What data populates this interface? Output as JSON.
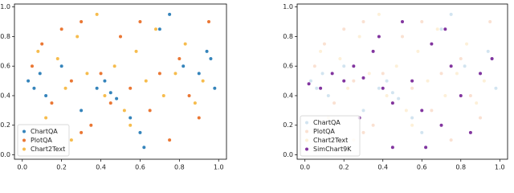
{
  "chart_data": [
    {
      "type": "scatter",
      "legend": "lower left",
      "xlim": [
        -0.04,
        1.04
      ],
      "ylim": [
        -0.03,
        1.02
      ],
      "xticks": [
        {
          "value": 0,
          "label": "0.0"
        },
        {
          "value": 0.2,
          "label": "0.2"
        },
        {
          "value": 0.4,
          "label": "0.4"
        },
        {
          "value": 0.6,
          "label": "0.6"
        },
        {
          "value": 0.8,
          "label": "0.8"
        },
        {
          "value": 1,
          "label": "1.0"
        }
      ],
      "yticks": [
        {
          "value": 0,
          "label": "0.0"
        },
        {
          "value": 0.2,
          "label": "0.2"
        },
        {
          "value": 0.4,
          "label": "0.4"
        },
        {
          "value": 0.6,
          "label": "0.6"
        },
        {
          "value": 0.8,
          "label": "0.8"
        },
        {
          "value": 1,
          "label": "1.0"
        }
      ],
      "series": [
        {
          "name": "ChartQA",
          "color": "#1f77b4",
          "alpha": 0.9,
          "x": [
            0.03,
            0.06,
            0.09,
            0.12,
            0.2,
            0.3,
            0.38,
            0.42,
            0.45,
            0.48,
            0.55,
            0.6,
            0.62,
            0.7,
            0.75,
            0.82,
            0.9,
            0.94,
            0.96,
            0.98
          ],
          "y": [
            0.5,
            0.45,
            0.55,
            0.4,
            0.6,
            0.3,
            0.45,
            0.5,
            0.42,
            0.38,
            0.25,
            0.15,
            0.05,
            0.85,
            0.95,
            0.6,
            0.55,
            0.7,
            0.65,
            0.45
          ]
        },
        {
          "name": "PlotQA",
          "color": "#e8681e",
          "alpha": 0.9,
          "x": [
            0.05,
            0.1,
            0.15,
            0.2,
            0.25,
            0.3,
            0.35,
            0.4,
            0.45,
            0.5,
            0.55,
            0.6,
            0.65,
            0.7,
            0.75,
            0.8,
            0.85,
            0.9,
            0.95,
            0.3
          ],
          "y": [
            0.6,
            0.75,
            0.35,
            0.85,
            0.5,
            0.9,
            0.2,
            0.55,
            0.35,
            0.8,
            0.45,
            0.9,
            0.3,
            0.55,
            0.1,
            0.65,
            0.4,
            0.25,
            0.9,
            0.15
          ]
        },
        {
          "name": "Chart2Text",
          "color": "#f5b53a",
          "alpha": 0.9,
          "x": [
            0.08,
            0.12,
            0.18,
            0.22,
            0.28,
            0.33,
            0.38,
            0.42,
            0.47,
            0.52,
            0.58,
            0.63,
            0.68,
            0.72,
            0.78,
            0.83,
            0.88,
            0.92,
            0.25,
            0.55
          ],
          "y": [
            0.7,
            0.25,
            0.65,
            0.45,
            0.8,
            0.55,
            0.95,
            0.4,
            0.6,
            0.3,
            0.7,
            0.5,
            0.85,
            0.4,
            0.55,
            0.75,
            0.35,
            0.5,
            0.1,
            0.2
          ]
        }
      ]
    },
    {
      "type": "scatter",
      "legend": "lower left",
      "xlim": [
        -0.04,
        1.04
      ],
      "ylim": [
        -0.03,
        1.02
      ],
      "xticks": [
        {
          "value": 0,
          "label": "0.0"
        },
        {
          "value": 0.2,
          "label": "0.2"
        },
        {
          "value": 0.4,
          "label": "0.4"
        },
        {
          "value": 0.6,
          "label": "0.6"
        },
        {
          "value": 0.8,
          "label": "0.8"
        },
        {
          "value": 1,
          "label": "1.0"
        }
      ],
      "yticks": [
        {
          "value": 0,
          "label": "0.0"
        },
        {
          "value": 0.2,
          "label": "0.2"
        },
        {
          "value": 0.4,
          "label": "0.4"
        },
        {
          "value": 0.6,
          "label": "0.6"
        },
        {
          "value": 0.8,
          "label": "0.8"
        },
        {
          "value": 1,
          "label": "1.0"
        }
      ],
      "series": [
        {
          "name": "ChartQA",
          "color": "#1f77b4",
          "alpha": 0.2,
          "x": [
            0.03,
            0.06,
            0.09,
            0.12,
            0.2,
            0.3,
            0.38,
            0.42,
            0.45,
            0.48,
            0.55,
            0.6,
            0.62,
            0.7,
            0.75,
            0.82,
            0.9,
            0.94,
            0.96,
            0.98
          ],
          "y": [
            0.5,
            0.45,
            0.55,
            0.4,
            0.6,
            0.3,
            0.45,
            0.5,
            0.42,
            0.38,
            0.25,
            0.15,
            0.05,
            0.85,
            0.95,
            0.6,
            0.55,
            0.7,
            0.65,
            0.45
          ]
        },
        {
          "name": "PlotQA",
          "color": "#e8681e",
          "alpha": 0.2,
          "x": [
            0.05,
            0.1,
            0.15,
            0.2,
            0.25,
            0.3,
            0.35,
            0.4,
            0.45,
            0.5,
            0.55,
            0.6,
            0.65,
            0.7,
            0.75,
            0.8,
            0.85,
            0.9,
            0.95,
            0.3
          ],
          "y": [
            0.6,
            0.75,
            0.35,
            0.85,
            0.5,
            0.9,
            0.2,
            0.55,
            0.35,
            0.8,
            0.45,
            0.9,
            0.3,
            0.55,
            0.1,
            0.65,
            0.4,
            0.25,
            0.9,
            0.15
          ]
        },
        {
          "name": "Chart2Text",
          "color": "#f5b53a",
          "alpha": 0.2,
          "x": [
            0.08,
            0.12,
            0.18,
            0.22,
            0.28,
            0.33,
            0.38,
            0.42,
            0.47,
            0.52,
            0.58,
            0.63,
            0.68,
            0.72,
            0.78,
            0.83,
            0.88,
            0.92,
            0.25,
            0.55
          ],
          "y": [
            0.7,
            0.25,
            0.65,
            0.45,
            0.8,
            0.55,
            0.95,
            0.4,
            0.6,
            0.3,
            0.7,
            0.5,
            0.85,
            0.4,
            0.55,
            0.75,
            0.35,
            0.5,
            0.1,
            0.2
          ]
        },
        {
          "name": "SimChart9K",
          "color": "#7b2a9a",
          "alpha": 0.95,
          "x": [
            0.02,
            0.08,
            0.14,
            0.2,
            0.25,
            0.3,
            0.35,
            0.4,
            0.45,
            0.5,
            0.55,
            0.6,
            0.65,
            0.7,
            0.75,
            0.8,
            0.85,
            0.9,
            0.96,
            0.28,
            0.45,
            0.62,
            0.72,
            0.38
          ],
          "y": [
            0.48,
            0.45,
            0.55,
            0.5,
            0.6,
            0.52,
            0.7,
            0.45,
            0.35,
            0.9,
            0.5,
            0.3,
            0.75,
            0.2,
            0.6,
            0.4,
            0.15,
            0.55,
            0.65,
            0.25,
            0.05,
            0.05,
            0.85,
            0.8
          ]
        }
      ]
    }
  ]
}
